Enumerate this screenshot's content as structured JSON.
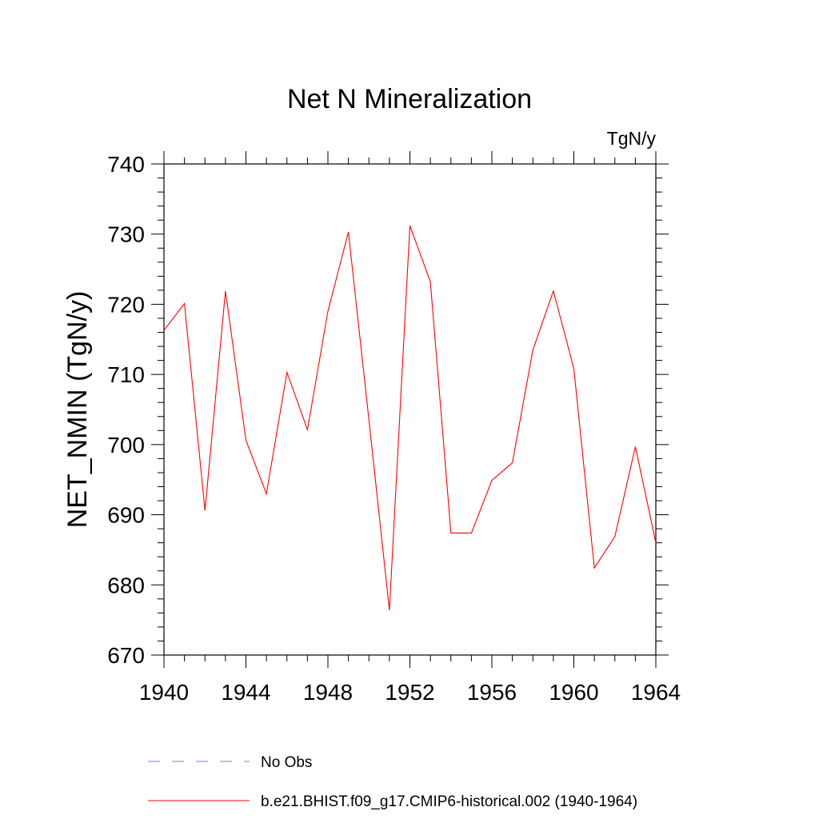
{
  "chart_data": {
    "type": "line",
    "title": "Net N Mineralization",
    "units_label": "TgN/y",
    "ylabel": "NET_NMIN  (TgN/y)",
    "xlabel": "",
    "xlim": [
      1940,
      1964
    ],
    "ylim": [
      670,
      740
    ],
    "x_ticks": [
      1940,
      1944,
      1948,
      1952,
      1956,
      1960,
      1964
    ],
    "x_tick_labels": [
      "1940",
      "1944",
      "1948",
      "1952",
      "1956",
      "1960",
      "1964"
    ],
    "y_ticks": [
      670,
      680,
      690,
      700,
      710,
      720,
      730,
      740
    ],
    "y_tick_labels": [
      "670",
      "680",
      "690",
      "700",
      "710",
      "720",
      "730",
      "740"
    ],
    "grid": false,
    "legend_position": "bottom",
    "series": [
      {
        "name": "b.e21.BHIST.f09_g17.CMIP6-historical.002 (1940-1964)",
        "color": "#ff0000",
        "style": "solid",
        "x": [
          1940,
          1941,
          1942,
          1943,
          1944,
          1945,
          1946,
          1947,
          1948,
          1949,
          1950,
          1951,
          1952,
          1953,
          1954,
          1955,
          1956,
          1957,
          1958,
          1959,
          1960,
          1961,
          1962,
          1963,
          1964
        ],
        "y": [
          716.3,
          720.1,
          690.6,
          721.9,
          700.6,
          693.0,
          710.3,
          702.1,
          719.0,
          730.3,
          703.5,
          676.4,
          731.2,
          723.2,
          687.4,
          687.4,
          694.9,
          697.4,
          713.5,
          721.9,
          710.8,
          682.4,
          686.9,
          699.7,
          686.0
        ]
      }
    ],
    "legend": [
      {
        "label": "No Obs",
        "color": "#7b7bc9",
        "style": "dashed"
      },
      {
        "label": "b.e21.BHIST.f09_g17.CMIP6-historical.002 (1940-1964)",
        "color": "#ff0000",
        "style": "solid"
      }
    ]
  }
}
